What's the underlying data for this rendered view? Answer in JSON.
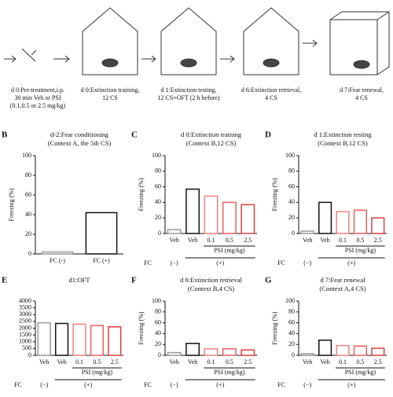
{
  "timeline": {
    "steps": [
      {
        "lines": [
          "d 0:Pre-treatment,i.p.",
          "30 min Veh or PSI",
          "(0.1,0.5 or 2.5 mg/kg)"
        ]
      },
      {
        "lines": [
          "d 0:Extinction training,",
          "12 CS"
        ]
      },
      {
        "lines": [
          "d 1:Extinction testing,",
          "12 CS+OFT (2 h before)"
        ]
      },
      {
        "lines": [
          "d 6:Extinction retrieval,",
          "4 CS"
        ]
      },
      {
        "lines": [
          "d 7:Fear renewal,",
          "4 CS"
        ]
      }
    ]
  },
  "chart_data": [
    {
      "type": "bar",
      "label": "B",
      "title": "d-2:Fear conditioning",
      "subtitle": "(Context A, the 5th CS)",
      "ylabel": "Freezing (%)",
      "categories": [
        "FC (-)",
        "FC (+)"
      ],
      "values": [
        2,
        42
      ],
      "colors": [
        "#999999",
        "#111111"
      ],
      "ylim": [
        0,
        100
      ],
      "yticks": [
        0,
        20,
        40,
        60,
        80,
        100
      ]
    },
    {
      "type": "bar",
      "label": "C",
      "title": "d 0:Extinction training",
      "subtitle": "(Context B,12 CS)",
      "ylabel": "Freezing (%)",
      "categories": [
        "Veh",
        "Veh",
        "0.1",
        "0.5",
        "2.5"
      ],
      "values": [
        5,
        57,
        48,
        40,
        37
      ],
      "colors": [
        "#999999",
        "#111111",
        "#f08080",
        "#e86060",
        "#d94040"
      ],
      "ylim": [
        0,
        100
      ],
      "yticks": [
        0,
        20,
        40,
        60,
        80,
        100
      ],
      "group_label": "PSI (mg/kg)",
      "factor_label": "FC",
      "factor_levels": [
        "(−)",
        "(+)"
      ]
    },
    {
      "type": "bar",
      "label": "D",
      "title": "d 1:Extinction testing",
      "subtitle": "(Context B,12 CS)",
      "ylabel": "Freezing (%)",
      "categories": [
        "Veh",
        "Veh",
        "0.1",
        "0.5",
        "2.5"
      ],
      "values": [
        3,
        40,
        28,
        30,
        20
      ],
      "colors": [
        "#999999",
        "#111111",
        "#f08080",
        "#e86060",
        "#d94040"
      ],
      "ylim": [
        0,
        100
      ],
      "yticks": [
        0,
        20,
        40,
        60,
        80,
        100
      ],
      "group_label": "PSI (mg/kg)",
      "factor_label": "FC",
      "factor_levels": [
        "(−)",
        "(+)"
      ]
    },
    {
      "type": "bar",
      "label": "E",
      "title": "d1:OFT",
      "categories": [
        "Veh",
        "Veh",
        "0.1",
        "0.5",
        "2.5"
      ],
      "values": [
        2400,
        2350,
        2300,
        2200,
        2100
      ],
      "colors": [
        "#999999",
        "#111111",
        "#f08080",
        "#e86060",
        "#d94040"
      ],
      "ylim": [
        0,
        4000
      ],
      "yticks": [
        0,
        500,
        1000,
        1500,
        2000,
        2500,
        3000,
        3500,
        4000
      ],
      "group_label": "PSI (mg/kg)",
      "factor_label": "FC",
      "factor_levels": [
        "(−)",
        "(+)"
      ]
    },
    {
      "type": "bar",
      "label": "F",
      "title": "d 6:Extinction retrieval",
      "subtitle": "(Context B,4 CS)",
      "ylabel": "Freezing (%)",
      "categories": [
        "Veh",
        "Veh",
        "0.1",
        "0.5",
        "2.5"
      ],
      "values": [
        5,
        22,
        12,
        12,
        10
      ],
      "colors": [
        "#999999",
        "#111111",
        "#f08080",
        "#e86060",
        "#d94040"
      ],
      "ylim": [
        0,
        100
      ],
      "yticks": [
        0,
        20,
        40,
        60,
        80,
        100
      ],
      "group_label": "PSI (mg/kg)",
      "factor_label": "FC",
      "factor_levels": [
        "(−)",
        "(+)"
      ]
    },
    {
      "type": "bar",
      "label": "G",
      "title": "d 7:Fear renewal",
      "subtitle": "(Context A,4 CS)",
      "ylabel": "Freezing (%)",
      "categories": [
        "Veh",
        "Veh",
        "0.1",
        "0.5",
        "2.5"
      ],
      "values": [
        3,
        28,
        18,
        17,
        13
      ],
      "colors": [
        "#999999",
        "#111111",
        "#f08080",
        "#e86060",
        "#d94040"
      ],
      "ylim": [
        0,
        100
      ],
      "yticks": [
        0,
        20,
        40,
        60,
        80,
        100
      ],
      "group_label": "PSI (mg/kg)",
      "factor_label": "FC",
      "factor_levels": [
        "(−)",
        "(+)"
      ]
    }
  ]
}
